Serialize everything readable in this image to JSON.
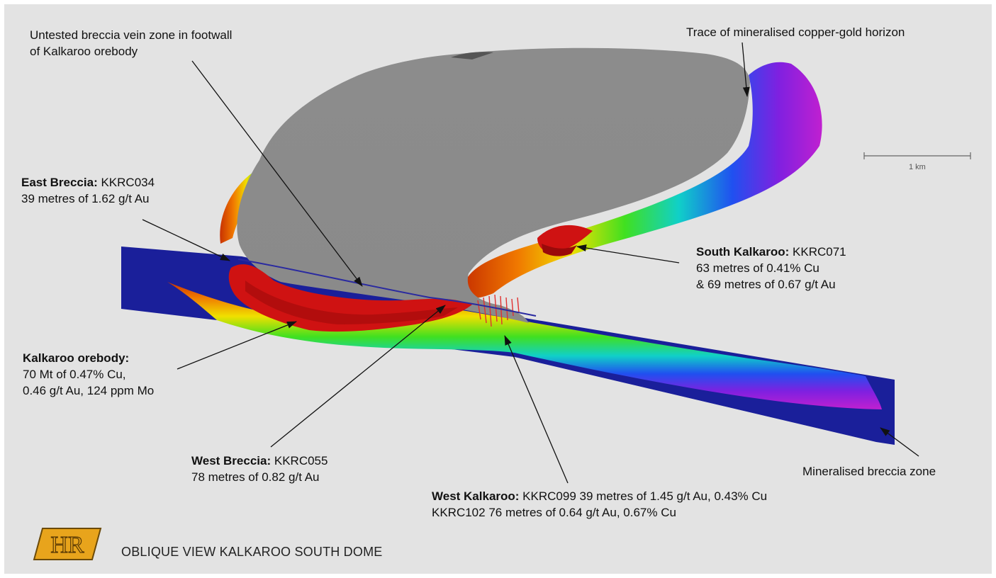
{
  "labels": {
    "untested_breccia": [
      "Untested breccia vein zone in footwall",
      "of Kalkaroo orebody"
    ],
    "trace_horizon": "Trace of mineralised copper-gold horizon",
    "east_breccia": {
      "name": "East Breccia:",
      "hole": " KKRC034",
      "line2": "39 metres of 1.62 g/t Au"
    },
    "south_kalkaroo": {
      "name": "South Kalkaroo:",
      "hole": " KKRC071",
      "line2": "63 metres of 0.41% Cu",
      "line3": "& 69 metres of 0.67 g/t Au"
    },
    "kalkaroo_orebody": {
      "name": "Kalkaroo orebody:",
      "line2": "70 Mt of 0.47% Cu,",
      "line3": "0.46 g/t Au, 124 ppm Mo"
    },
    "west_breccia": {
      "name": "West Breccia:",
      "hole": " KKRC055",
      "line2": "78 metres of 0.82 g/t Au"
    },
    "west_kalkaroo": {
      "name": "West Kalkaroo:",
      "hole": " KKRC099 39 metres of 1.45 g/t Au, 0.43% Cu",
      "line2": "KKRC102 76 metres of 0.64 g/t Au, 0.67% Cu"
    },
    "mineralised_breccia": "Mineralised breccia zone"
  },
  "scale_bar": {
    "label": "1 km"
  },
  "logo_text": "HR",
  "caption": "OBLIQUE VIEW KALKAROO SOUTH DOME",
  "colors": {
    "background": "#e3e3e3",
    "dome_top": "#8e8e8e",
    "breccia_zone": "#1a1f9a",
    "orebody": "#d01010",
    "logo_fill": "#e8a41c"
  }
}
